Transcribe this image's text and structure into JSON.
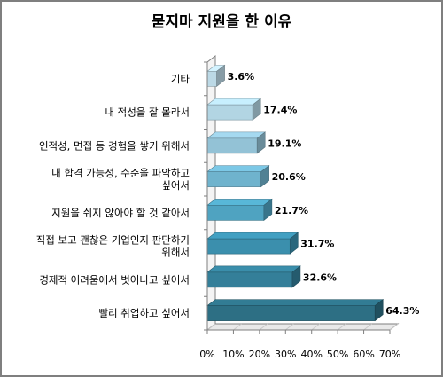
{
  "chart_data": {
    "type": "bar",
    "orientation": "horizontal",
    "title": "묻지마 지원을 한 이유",
    "categories": [
      "기타",
      "내 적성을 잘 몰라서",
      "인적성, 면접 등 경험을 쌓기 위해서",
      "내 합격 가능성, 수준을 파악하고 싶어서",
      "지원을 쉬지 않아야 할 것 같아서",
      "직접 보고 괜찮은 기업인지 판단하기 위해서",
      "경제적 어려움에서 벗어나고 싶어서",
      "빨리 취업하고 싶어서"
    ],
    "category_lines": [
      [
        "기타"
      ],
      [
        "내 적성을 잘 몰라서"
      ],
      [
        "인적성, 면접 등 경험을 쌓기 위해서"
      ],
      [
        "내 합격 가능성, 수준을 파악하고",
        "싶어서"
      ],
      [
        "지원을 쉬지 않아야 할 것 같아서"
      ],
      [
        "직접 보고 괜찮은 기업인지 판단하기",
        "위해서"
      ],
      [
        "경제적 어려움에서 벗어나고 싶어서"
      ],
      [
        "빨리 취업하고 싶어서"
      ]
    ],
    "values": [
      3.6,
      17.4,
      19.1,
      20.6,
      21.7,
      31.7,
      32.6,
      64.3
    ],
    "value_labels": [
      "3.6%",
      "17.4%",
      "19.1%",
      "20.6%",
      "21.7%",
      "31.7%",
      "32.6%",
      "64.3%"
    ],
    "xlim": [
      0,
      70
    ],
    "ticks": [
      0,
      10,
      20,
      30,
      40,
      50,
      60,
      70
    ],
    "tick_labels": [
      "0%",
      "10%",
      "20%",
      "30%",
      "40%",
      "50%",
      "60%",
      "70%"
    ],
    "xlabel": "",
    "ylabel": "",
    "grid": false,
    "style": "3d",
    "bar_colors": [
      "#bcd9e6",
      "#b2d5e3",
      "#93c2d6",
      "#6fb3cd",
      "#4fa3c1",
      "#3b8fad",
      "#347f99",
      "#2d6f84"
    ],
    "axis_color": "#7f7f7f",
    "wall_color": "#ffffff"
  }
}
